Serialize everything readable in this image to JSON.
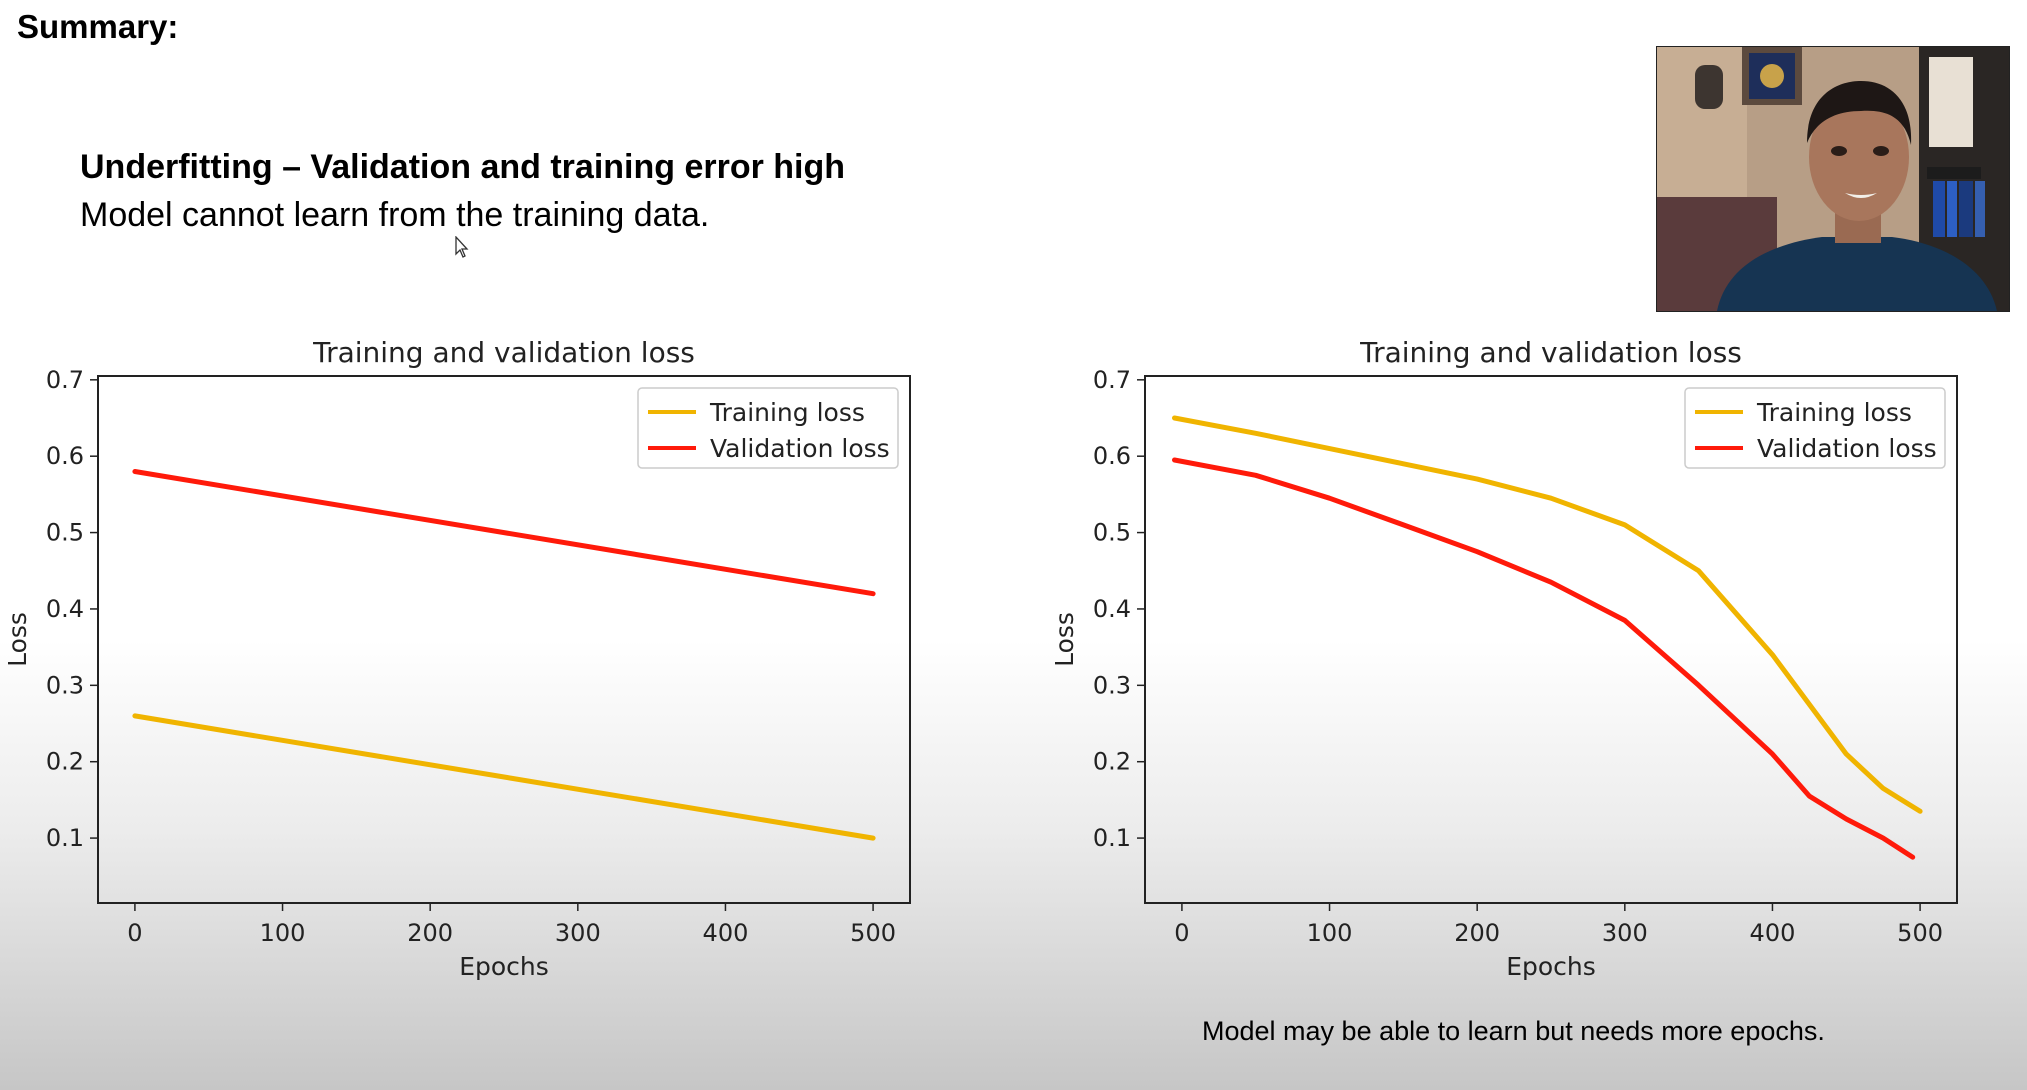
{
  "slide": {
    "title": "Summary:",
    "heading": "Underfitting – Validation and training error high",
    "subheading": "Model cannot learn from the training data.",
    "caption": "Model may be able to learn but needs more epochs."
  },
  "colors": {
    "training": "#f0b400",
    "validation": "#ff1a0a",
    "axis": "#222222",
    "legend_border": "#cccccc"
  },
  "webcam": {
    "description_icon": "presenter-video-icon"
  },
  "chart_data": [
    {
      "type": "line",
      "title": "Training and validation loss",
      "xlabel": "Epochs",
      "ylabel": "Loss",
      "xlim": [
        -25,
        525
      ],
      "ylim": [
        0.015,
        0.705
      ],
      "xticks": [
        0,
        100,
        200,
        300,
        400,
        500
      ],
      "yticks": [
        0.1,
        0.2,
        0.3,
        0.4,
        0.5,
        0.6,
        0.7
      ],
      "xtick_labels": [
        "0",
        "100",
        "200",
        "300",
        "400",
        "500"
      ],
      "ytick_labels": [
        "0.1",
        "0.2",
        "0.3",
        "0.4",
        "0.5",
        "0.6",
        "0.7"
      ],
      "grid": false,
      "legend": "top-right",
      "series": [
        {
          "name": "Training loss",
          "color": "#f0b400",
          "x": [
            0,
            500
          ],
          "y": [
            0.26,
            0.1
          ]
        },
        {
          "name": "Validation loss",
          "color": "#ff1a0a",
          "x": [
            0,
            500
          ],
          "y": [
            0.58,
            0.42
          ]
        }
      ]
    },
    {
      "type": "line",
      "title": "Training and validation loss",
      "xlabel": "Epochs",
      "ylabel": "Loss",
      "xlim": [
        -25,
        525
      ],
      "ylim": [
        0.015,
        0.705
      ],
      "xticks": [
        0,
        100,
        200,
        300,
        400,
        500
      ],
      "yticks": [
        0.1,
        0.2,
        0.3,
        0.4,
        0.5,
        0.6,
        0.7
      ],
      "xtick_labels": [
        "0",
        "100",
        "200",
        "300",
        "400",
        "500"
      ],
      "ytick_labels": [
        "0.1",
        "0.2",
        "0.3",
        "0.4",
        "0.5",
        "0.6",
        "0.7"
      ],
      "grid": false,
      "legend": "top-right",
      "series": [
        {
          "name": "Training loss",
          "color": "#f0b400",
          "x": [
            -5,
            50,
            100,
            150,
            200,
            250,
            300,
            350,
            400,
            450,
            475,
            500
          ],
          "y": [
            0.65,
            0.63,
            0.61,
            0.59,
            0.57,
            0.545,
            0.51,
            0.45,
            0.34,
            0.21,
            0.165,
            0.135
          ]
        },
        {
          "name": "Validation loss",
          "color": "#ff1a0a",
          "x": [
            -5,
            50,
            100,
            150,
            200,
            250,
            300,
            350,
            400,
            425,
            450,
            475,
            495
          ],
          "y": [
            0.595,
            0.575,
            0.545,
            0.51,
            0.475,
            0.435,
            0.385,
            0.3,
            0.21,
            0.155,
            0.125,
            0.1,
            0.075
          ]
        }
      ]
    }
  ]
}
